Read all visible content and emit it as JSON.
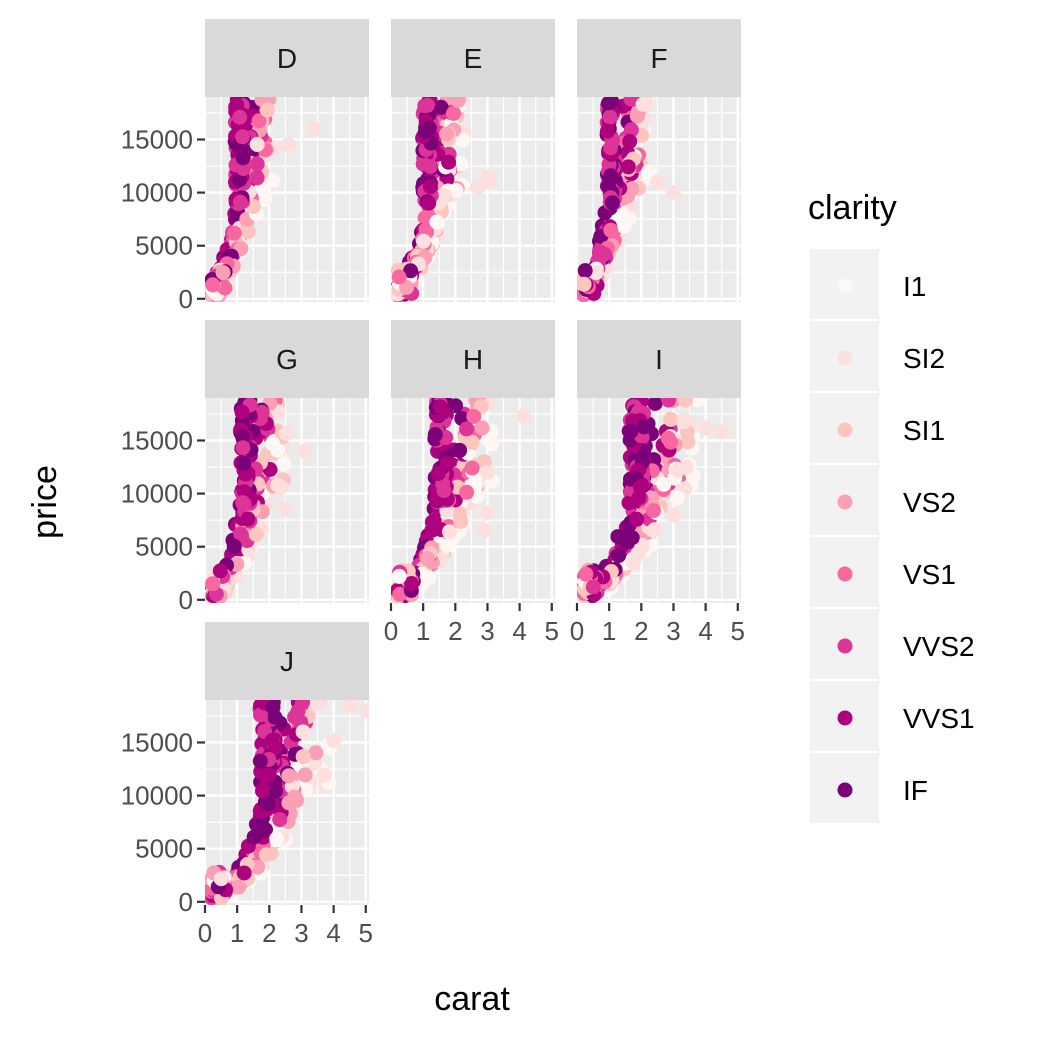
{
  "chart_data": {
    "type": "scatter",
    "facet_by": "color",
    "panels": [
      {
        "name": "D",
        "ceiling_carat": 1.1,
        "max_carat": 3.5,
        "outliers": [
          [
            3.4,
            16000
          ],
          [
            2.6,
            14500
          ]
        ]
      },
      {
        "name": "E",
        "ceiling_carat": 1.15,
        "max_carat": 3.5,
        "outliers": [
          [
            3.05,
            11000
          ],
          [
            2.7,
            10500
          ],
          [
            3.0,
            11500
          ]
        ]
      },
      {
        "name": "F",
        "ceiling_carat": 1.1,
        "max_carat": 3.4,
        "outliers": [
          [
            3.0,
            10000
          ],
          [
            2.5,
            11000
          ]
        ]
      },
      {
        "name": "G",
        "ceiling_carat": 1.3,
        "max_carat": 3.2,
        "outliers": [
          [
            2.5,
            8500
          ],
          [
            3.1,
            14000
          ]
        ]
      },
      {
        "name": "H",
        "ceiling_carat": 1.6,
        "max_carat": 4.13,
        "outliers": [
          [
            4.13,
            17300
          ],
          [
            3.0,
            12000
          ],
          [
            2.9,
            6500
          ],
          [
            3.0,
            8200
          ]
        ]
      },
      {
        "name": "I",
        "ceiling_carat": 1.9,
        "max_carat": 4.5,
        "outliers": [
          [
            4.5,
            15800
          ],
          [
            4.0,
            16200
          ],
          [
            3.0,
            8000
          ],
          [
            3.4,
            12500
          ]
        ]
      },
      {
        "name": "J",
        "ceiling_carat": 2.0,
        "max_carat": 5.01,
        "outliers": [
          [
            5.01,
            18000
          ],
          [
            4.5,
            18500
          ],
          [
            4.0,
            15200
          ],
          [
            3.5,
            18600
          ],
          [
            3.05,
            16000
          ]
        ]
      }
    ],
    "layout_note_values": {
      "visible_y_ticks": [
        "0",
        "5000",
        "10000",
        "15000"
      ],
      "visible_x_ticks": [
        "0",
        "1",
        "2",
        "3",
        "4",
        "5"
      ]
    },
    "xlabel": "carat",
    "ylabel": "price",
    "xlim": [
      0,
      5.1
    ],
    "ylim": [
      -300,
      19000
    ],
    "x_ticks": [
      0,
      1,
      2,
      3,
      4,
      5
    ],
    "y_ticks": [
      0,
      5000,
      10000,
      15000
    ],
    "grid": true,
    "legend": {
      "title": "clarity",
      "position": "right",
      "entries": [
        {
          "label": "I1",
          "color": "#FFF7F3"
        },
        {
          "label": "SI2",
          "color": "#FDE0DD"
        },
        {
          "label": "SI1",
          "color": "#FCC5C0"
        },
        {
          "label": "VS2",
          "color": "#FA9FB5"
        },
        {
          "label": "VS1",
          "color": "#F768A1"
        },
        {
          "label": "VVS2",
          "color": "#DD3497"
        },
        {
          "label": "VVS1",
          "color": "#AE017E"
        },
        {
          "label": "IF",
          "color": "#7A0177"
        }
      ]
    },
    "colors": {
      "panel_background": "#EBEBEB",
      "grid": "#FFFFFF",
      "strip_background": "#D9D9D9"
    }
  }
}
